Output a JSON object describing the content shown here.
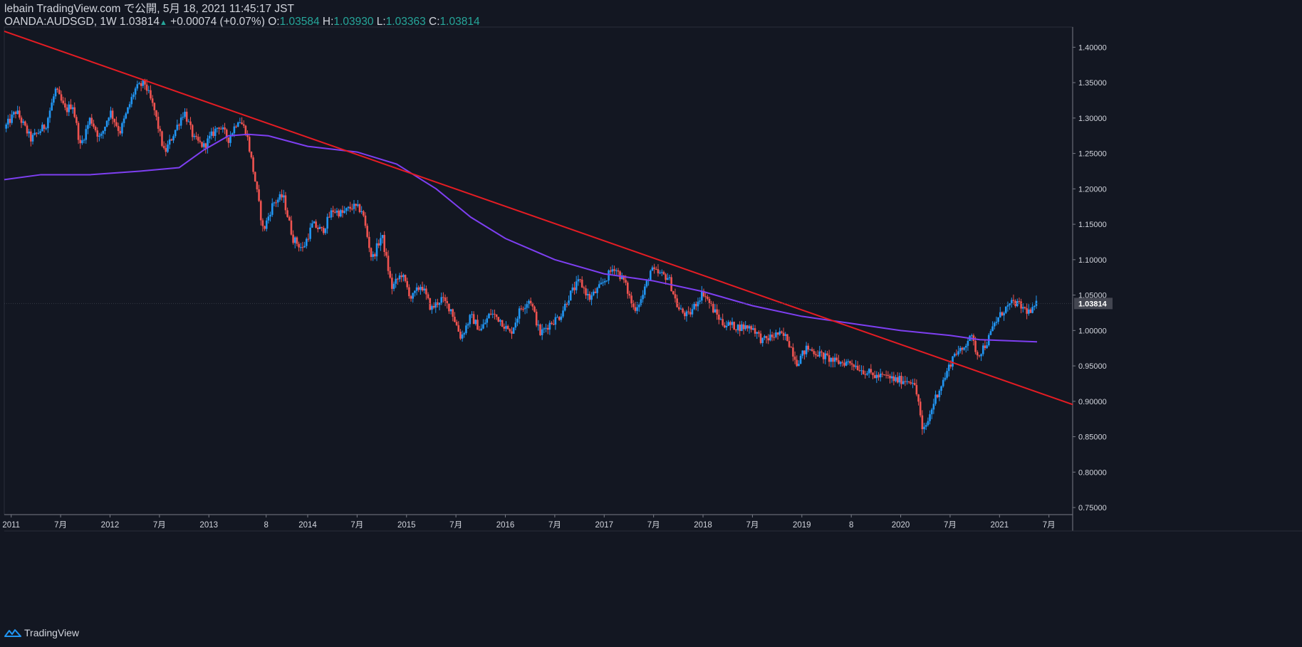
{
  "header": {
    "publisher": "lebain TradingView.com で公開, 5月 18, 2021 11:45:17 JST",
    "symbol": "OANDA:AUDSGD, 1W",
    "last": "1.03814",
    "change": "+0.00074 (+0.07%)",
    "o_label": "O:",
    "o_value": "1.03584",
    "h_label": "H:",
    "h_value": "1.03930",
    "l_label": "L:",
    "l_value": "1.03363",
    "c_label": "C:",
    "c_value": "1.03814"
  },
  "footer": {
    "brand": "TradingView"
  },
  "colors": {
    "background": "#131722",
    "up": "#2196f3",
    "down": "#ef5350",
    "trendline": "#e51c23",
    "ma": "#7e3ff2",
    "text": "#d1d4dc",
    "value_green": "#26a69a"
  },
  "chart_data": {
    "type": "candlestick",
    "timeframe": "1W",
    "symbol": "OANDA:AUDSGD",
    "ylim": [
      0.74,
      1.4285
    ],
    "xlim": [
      2010.93,
      2021.74
    ],
    "yticks": [
      "0.75000",
      "0.80000",
      "0.85000",
      "0.90000",
      "0.95000",
      "1.00000",
      "1.05000",
      "1.10000",
      "1.15000",
      "1.20000",
      "1.25000",
      "1.30000",
      "1.35000",
      "1.40000"
    ],
    "xticks": [
      {
        "t": 2011.0,
        "label": "2011"
      },
      {
        "t": 2011.5,
        "label": "7月"
      },
      {
        "t": 2012.0,
        "label": "2012"
      },
      {
        "t": 2012.5,
        "label": "7月"
      },
      {
        "t": 2013.0,
        "label": "2013"
      },
      {
        "t": 2013.58,
        "label": "8"
      },
      {
        "t": 2014.0,
        "label": "2014"
      },
      {
        "t": 2014.5,
        "label": "7月"
      },
      {
        "t": 2015.0,
        "label": "2015"
      },
      {
        "t": 2015.5,
        "label": "7月"
      },
      {
        "t": 2016.0,
        "label": "2016"
      },
      {
        "t": 2016.5,
        "label": "7月"
      },
      {
        "t": 2017.0,
        "label": "2017"
      },
      {
        "t": 2017.5,
        "label": "7月"
      },
      {
        "t": 2018.0,
        "label": "2018"
      },
      {
        "t": 2018.5,
        "label": "7月"
      },
      {
        "t": 2019.0,
        "label": "2019"
      },
      {
        "t": 2019.5,
        "label": "8"
      },
      {
        "t": 2020.0,
        "label": "2020"
      },
      {
        "t": 2020.5,
        "label": "7月"
      },
      {
        "t": 2021.0,
        "label": "2021"
      },
      {
        "t": 2021.5,
        "label": "7月"
      }
    ],
    "last_price": "1.03814",
    "close_path": [
      [
        2010.93,
        1.285
      ],
      [
        2011.05,
        1.31
      ],
      [
        2011.2,
        1.27
      ],
      [
        2011.35,
        1.29
      ],
      [
        2011.45,
        1.34
      ],
      [
        2011.55,
        1.31
      ],
      [
        2011.62,
        1.32
      ],
      [
        2011.7,
        1.26
      ],
      [
        2011.8,
        1.3
      ],
      [
        2011.9,
        1.27
      ],
      [
        2012.0,
        1.31
      ],
      [
        2012.1,
        1.28
      ],
      [
        2012.25,
        1.34
      ],
      [
        2012.35,
        1.35
      ],
      [
        2012.45,
        1.31
      ],
      [
        2012.55,
        1.25
      ],
      [
        2012.65,
        1.28
      ],
      [
        2012.75,
        1.31
      ],
      [
        2012.85,
        1.27
      ],
      [
        2012.95,
        1.26
      ],
      [
        2013.1,
        1.29
      ],
      [
        2013.2,
        1.27
      ],
      [
        2013.3,
        1.3
      ],
      [
        2013.38,
        1.28
      ],
      [
        2013.47,
        1.21
      ],
      [
        2013.55,
        1.14
      ],
      [
        2013.65,
        1.18
      ],
      [
        2013.75,
        1.19
      ],
      [
        2013.85,
        1.13
      ],
      [
        2013.95,
        1.115
      ],
      [
        2014.05,
        1.15
      ],
      [
        2014.15,
        1.14
      ],
      [
        2014.25,
        1.17
      ],
      [
        2014.35,
        1.165
      ],
      [
        2014.45,
        1.175
      ],
      [
        2014.55,
        1.17
      ],
      [
        2014.65,
        1.1
      ],
      [
        2014.75,
        1.135
      ],
      [
        2014.85,
        1.06
      ],
      [
        2014.95,
        1.08
      ],
      [
        2015.05,
        1.045
      ],
      [
        2015.15,
        1.065
      ],
      [
        2015.25,
        1.03
      ],
      [
        2015.35,
        1.045
      ],
      [
        2015.45,
        1.03
      ],
      [
        2015.55,
        0.99
      ],
      [
        2015.65,
        1.02
      ],
      [
        2015.75,
        1.0
      ],
      [
        2015.85,
        1.025
      ],
      [
        2015.95,
        1.015
      ],
      [
        2016.05,
        0.995
      ],
      [
        2016.15,
        1.03
      ],
      [
        2016.25,
        1.045
      ],
      [
        2016.35,
        0.995
      ],
      [
        2016.45,
        1.01
      ],
      [
        2016.55,
        1.02
      ],
      [
        2016.65,
        1.05
      ],
      [
        2016.75,
        1.07
      ],
      [
        2016.85,
        1.045
      ],
      [
        2016.95,
        1.06
      ],
      [
        2017.1,
        1.09
      ],
      [
        2017.2,
        1.07
      ],
      [
        2017.3,
        1.03
      ],
      [
        2017.38,
        1.045
      ],
      [
        2017.47,
        1.085
      ],
      [
        2017.55,
        1.08
      ],
      [
        2017.65,
        1.075
      ],
      [
        2017.75,
        1.03
      ],
      [
        2017.85,
        1.02
      ],
      [
        2018.0,
        1.055
      ],
      [
        2018.1,
        1.03
      ],
      [
        2018.2,
        1.01
      ],
      [
        2018.35,
        1.005
      ],
      [
        2018.5,
        1.005
      ],
      [
        2018.6,
        0.985
      ],
      [
        2018.75,
        0.995
      ],
      [
        2018.85,
        0.99
      ],
      [
        2018.95,
        0.955
      ],
      [
        2019.05,
        0.975
      ],
      [
        2019.2,
        0.965
      ],
      [
        2019.35,
        0.955
      ],
      [
        2019.5,
        0.955
      ],
      [
        2019.6,
        0.945
      ],
      [
        2019.75,
        0.935
      ],
      [
        2019.85,
        0.935
      ],
      [
        2019.95,
        0.93
      ],
      [
        2020.05,
        0.93
      ],
      [
        2020.12,
        0.93
      ],
      [
        2020.18,
        0.9
      ],
      [
        2020.22,
        0.855
      ],
      [
        2020.27,
        0.87
      ],
      [
        2020.35,
        0.905
      ],
      [
        2020.45,
        0.935
      ],
      [
        2020.55,
        0.97
      ],
      [
        2020.62,
        0.97
      ],
      [
        2020.7,
        0.995
      ],
      [
        2020.78,
        0.965
      ],
      [
        2020.88,
        0.985
      ],
      [
        2020.95,
        1.01
      ],
      [
        2021.05,
        1.03
      ],
      [
        2021.15,
        1.04
      ],
      [
        2021.25,
        1.03
      ],
      [
        2021.32,
        1.025
      ],
      [
        2021.38,
        1.038
      ]
    ],
    "series": [
      {
        "name": "Moving average",
        "points": [
          [
            2010.93,
            1.213
          ],
          [
            2011.3,
            1.22
          ],
          [
            2011.8,
            1.22
          ],
          [
            2012.3,
            1.225
          ],
          [
            2012.7,
            1.23
          ],
          [
            2012.95,
            1.255
          ],
          [
            2013.2,
            1.275
          ],
          [
            2013.4,
            1.277
          ],
          [
            2013.6,
            1.275
          ],
          [
            2014.0,
            1.26
          ],
          [
            2014.5,
            1.252
          ],
          [
            2014.9,
            1.235
          ],
          [
            2015.3,
            1.2
          ],
          [
            2015.65,
            1.16
          ],
          [
            2016.0,
            1.13
          ],
          [
            2016.5,
            1.1
          ],
          [
            2017.0,
            1.08
          ],
          [
            2017.5,
            1.07
          ],
          [
            2018.0,
            1.055
          ],
          [
            2018.5,
            1.035
          ],
          [
            2019.0,
            1.02
          ],
          [
            2019.5,
            1.01
          ],
          [
            2020.0,
            1.0
          ],
          [
            2020.5,
            0.993
          ],
          [
            2020.8,
            0.987
          ],
          [
            2021.0,
            0.986
          ],
          [
            2021.38,
            0.984
          ]
        ]
      }
    ],
    "trendline": [
      [
        2010.93,
        1.4225
      ],
      [
        2021.74,
        0.8955
      ]
    ]
  }
}
